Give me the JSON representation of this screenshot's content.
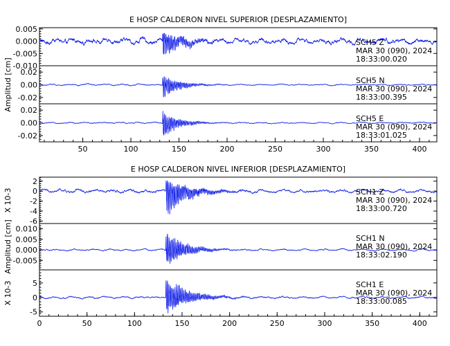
{
  "chart_data": [
    {
      "type": "line",
      "title": "E HOSP CALDERON NIVEL SUPERIOR [DESPLAZAMIENTO]",
      "ylabel": "Amplitud [cm]",
      "xlim": [
        5,
        418
      ],
      "xticks": [
        "50",
        "100",
        "150",
        "200",
        "250",
        "300",
        "350",
        "400"
      ],
      "event_time": 133,
      "panels": [
        {
          "channel": "SCH5   Z",
          "date": "MAR 30 (090), 2024",
          "time": "18:33:00.020",
          "ylim": [
            -0.01,
            0.0055
          ],
          "yticks": [
            "0.005",
            "0.000",
            "-0.005",
            "-0.010"
          ],
          "pre_amp": 0.0012,
          "peak": 0.0053,
          "trough": -0.008,
          "decay": 18,
          "post_amp": 0.0011
        },
        {
          "channel": "SCH5   N",
          "date": "MAR 30 (090), 2024",
          "time": "18:33:00.395",
          "ylim": [
            -0.03,
            0.03
          ],
          "yticks": [
            "0.02",
            "0.00",
            "-0.02"
          ],
          "pre_amp": 0.0012,
          "peak": 0.017,
          "trough": -0.028,
          "decay": 16,
          "post_amp": 0.001
        },
        {
          "channel": "SCH5   E",
          "date": "MAR 30 (090), 2024",
          "time": "18:33:01.025",
          "ylim": [
            -0.03,
            0.03
          ],
          "yticks": [
            "0.02",
            "0.00",
            "-0.02"
          ],
          "pre_amp": 0.0012,
          "peak": 0.02,
          "trough": -0.028,
          "decay": 16,
          "post_amp": 0.001
        }
      ]
    },
    {
      "type": "line",
      "title": "E HOSP CALDERON NIVEL INFERIOR [DESPLAZAMIENTO]",
      "ylabel": "Amplitud [cm]",
      "xlim": [
        0,
        418
      ],
      "xticks": [
        "0",
        "50",
        "100",
        "150",
        "200",
        "250",
        "300",
        "350",
        "400"
      ],
      "event_time": 133,
      "panels": [
        {
          "channel": "SCH1   Z",
          "date": "MAR 30 (090), 2024",
          "time": "18:33:00.720",
          "unit": "X 10-3",
          "ylim": [
            -6.5,
            2.8
          ],
          "yticks": [
            "2",
            "0",
            "-2",
            "-4",
            "-6"
          ],
          "pre_amp": 0.35,
          "peak": 2.5,
          "trough": -6.0,
          "decay": 22,
          "post_amp": 0.3
        },
        {
          "channel": "SCH1   N",
          "date": "MAR 30 (090), 2024",
          "time": "18:33:02.190",
          "ylim": [
            -0.0095,
            0.0125
          ],
          "yticks": [
            "0.010",
            "0.005",
            "0.000",
            "-0.005"
          ],
          "pre_amp": 0.0004,
          "peak": 0.0115,
          "trough": -0.009,
          "decay": 18,
          "post_amp": 0.0004
        },
        {
          "channel": "SCH1   E",
          "date": "MAR 30 (090), 2024",
          "time": "18:33:00.085",
          "unit": "X 10-3",
          "ylim": [
            -6.5,
            9.5
          ],
          "yticks": [
            "5",
            "0",
            "-5"
          ],
          "pre_amp": 0.35,
          "peak": 8.5,
          "trough": -6.0,
          "decay": 22,
          "post_amp": 0.35
        }
      ]
    }
  ]
}
